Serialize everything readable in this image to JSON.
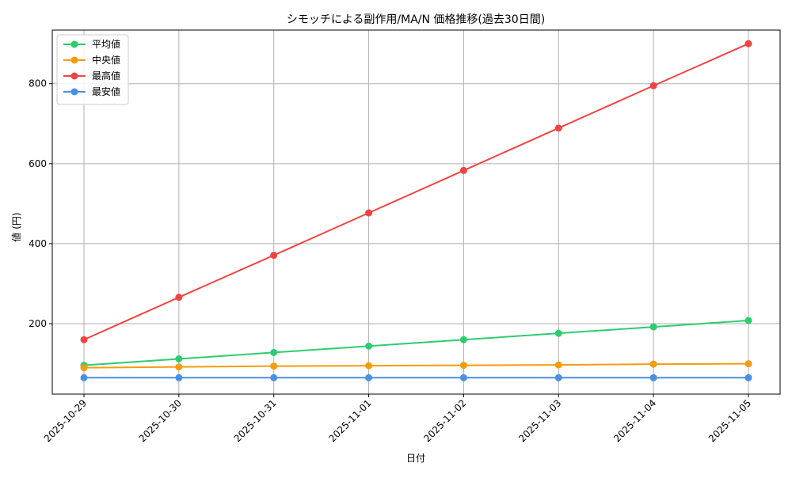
{
  "chart_data": {
    "type": "line",
    "title": "シモッチによる副作用/MA/N 価格推移(過去30日間)",
    "xlabel": "日付",
    "ylabel": "値 (円)",
    "categories": [
      "2025-10-29",
      "2025-10-30",
      "2025-10-31",
      "2025-11-01",
      "2025-11-02",
      "2025-11-03",
      "2025-11-04",
      "2025-11-05"
    ],
    "yticks": [
      200,
      400,
      600,
      800
    ],
    "ylim": [
      24,
      934
    ],
    "grid": true,
    "legend_position": "top-left",
    "series": [
      {
        "name": "平均値",
        "color": "#2ecc71",
        "values": [
          96,
          112,
          128,
          144,
          160,
          176,
          192,
          208
        ]
      },
      {
        "name": "中央値",
        "color": "#f39c12",
        "values": [
          90,
          92,
          94,
          95,
          96,
          97,
          99,
          100
        ]
      },
      {
        "name": "最高値",
        "color": "#ef4444",
        "values": [
          160,
          266,
          371,
          477,
          583,
          689,
          795,
          900
        ]
      },
      {
        "name": "最安値",
        "color": "#4a90e2",
        "values": [
          65,
          65,
          65,
          65,
          65,
          65,
          65,
          65
        ]
      }
    ]
  }
}
